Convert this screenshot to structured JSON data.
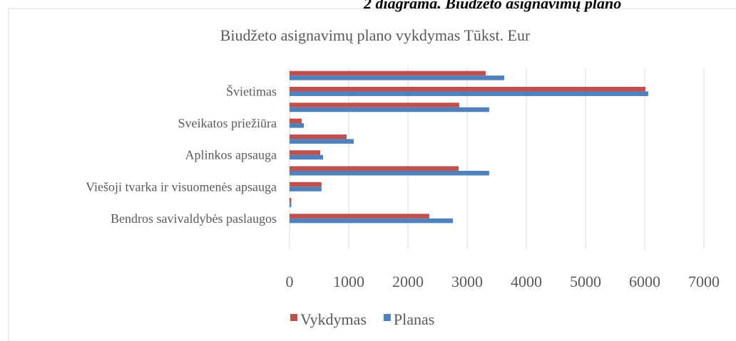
{
  "caption": "2 diagrama. Biudžeto asignavimų plano",
  "chart_data": {
    "type": "hbar",
    "title": "Biudžeto asignavimų plano vykdymas Tūkst. Eur",
    "categories": [
      "Bendros savivaldybės paslaugos",
      null,
      "Viešoji tvarka ir visuomenės apsauga",
      null,
      "Aplinkos apsauga",
      null,
      "Sveikatos priežiūra",
      null,
      "Švietimas",
      null
    ],
    "series": [
      {
        "name": "Vykdymas",
        "color": "#c0504d",
        "values": [
          2360,
          30,
          540,
          2855,
          518,
          964,
          205,
          2867,
          6012,
          3313
        ]
      },
      {
        "name": "Planas",
        "color": "#4f81bd",
        "values": [
          2760,
          30,
          540,
          3373,
          566,
          1084,
          241,
          3373,
          6060,
          3627
        ]
      }
    ],
    "xlim": [
      0,
      7000
    ],
    "xticks": [
      0,
      1000,
      2000,
      3000,
      4000,
      5000,
      6000,
      7000
    ],
    "grid": true,
    "legend": "bottom"
  }
}
